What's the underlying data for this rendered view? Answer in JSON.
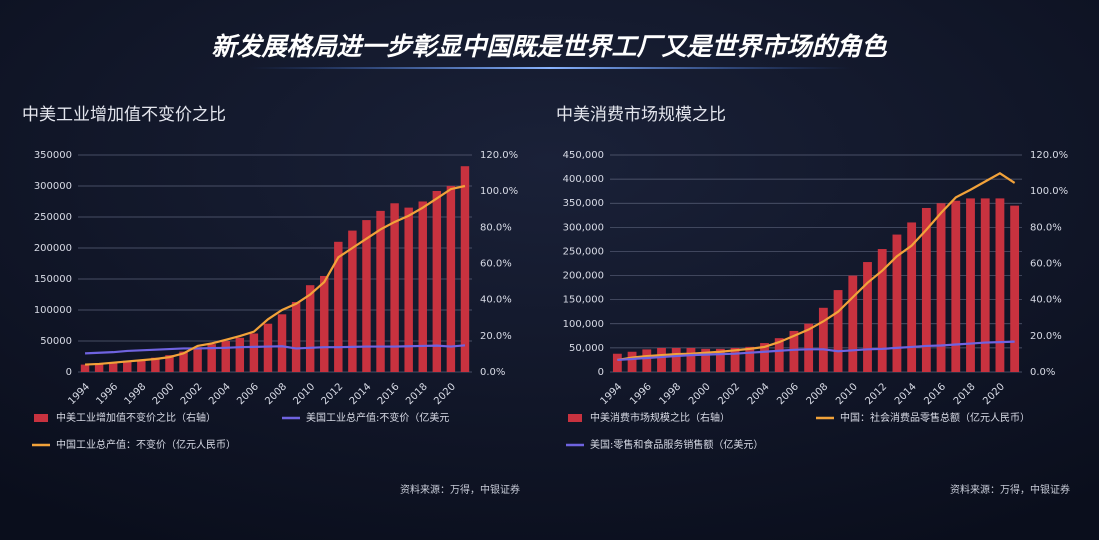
{
  "title": "新发展格局进一步彰显中国既是世界工厂又是世界市场的角色",
  "chart_data": [
    {
      "type": "combo",
      "title": "中美工业增加值不变价之比",
      "source": "资料来源：万得，中银证券",
      "categories": [
        "1994",
        null,
        "1996",
        null,
        "1998",
        null,
        "2000",
        null,
        "2002",
        null,
        "2004",
        null,
        "2006",
        null,
        "2008",
        null,
        "2010",
        null,
        "2012",
        null,
        "2014",
        null,
        "2016",
        null,
        "2018",
        null,
        "2020",
        null
      ],
      "series": [
        {
          "name": "中美工业增加值不变价之比（右轴）",
          "type": "bar",
          "axis": "y2",
          "color": "#c8323f",
          "values": [
            4.1,
            4.8,
            5.5,
            6.2,
            6.9,
            7.9,
            9.3,
            11.3,
            13.7,
            15.4,
            17.1,
            18.9,
            21.3,
            26.7,
            31.9,
            38.7,
            48.0,
            53.1,
            72.0,
            78.2,
            84.0,
            89.1,
            93.3,
            90.9,
            94.3,
            100.1,
            102.9,
            113.8
          ]
        },
        {
          "name": "美国工业总产值:不变价（亿美元",
          "type": "line",
          "color": "#6f63e0",
          "values": [
            30000,
            31000,
            32000,
            34000,
            35000,
            36000,
            37000,
            38000,
            38000,
            38500,
            39000,
            40000,
            40500,
            41000,
            41500,
            38000,
            39000,
            40000,
            40000,
            40500,
            41000,
            41000,
            41000,
            41500,
            42000,
            42500,
            41000,
            43000
          ]
        },
        {
          "name": "中国工业总产值：不变价（亿元人民币）",
          "type": "line",
          "color": "#f2a23a",
          "values": [
            12000,
            13000,
            15000,
            17000,
            19000,
            21000,
            24000,
            30000,
            42000,
            46000,
            52000,
            58000,
            65000,
            85000,
            100000,
            110000,
            125000,
            145000,
            185000,
            200000,
            215000,
            230000,
            242000,
            252000,
            265000,
            280000,
            295000,
            300000
          ]
        }
      ],
      "ylim": [
        0,
        350000
      ],
      "yticks": [
        0,
        50000,
        100000,
        150000,
        200000,
        250000,
        300000,
        350000
      ],
      "y2lim": [
        0,
        120
      ],
      "y2ticks": [
        {
          "value": 0,
          "label": "0.0%"
        },
        {
          "value": 20,
          "label": "20.0%"
        },
        {
          "value": 40,
          "label": "40.0%"
        },
        {
          "value": 60,
          "label": "60.0%"
        },
        {
          "value": 80,
          "label": "80.0%"
        },
        {
          "value": 100,
          "label": "100.0%"
        },
        {
          "value": 120,
          "label": "120.0%"
        }
      ],
      "grid": true
    },
    {
      "type": "combo",
      "title": "中美消费市场规模之比",
      "source": "资料来源：万得，中银证券",
      "categories": [
        "1994",
        null,
        "1996",
        null,
        "1998",
        null,
        "2000",
        null,
        "2002",
        null,
        "2004",
        null,
        "2006",
        null,
        "2008",
        null,
        "2010",
        null,
        "2012",
        null,
        "2014",
        null,
        "2016",
        null,
        "2018",
        null,
        "2020",
        null
      ],
      "series": [
        {
          "name": "中美消费市场规模之比（右轴）",
          "type": "bar",
          "axis": "y2",
          "color": "#c8323f",
          "values": [
            10.1,
            11.2,
            12.5,
            13.3,
            13.3,
            13.3,
            12.8,
            12.8,
            13.3,
            13.9,
            16.0,
            18.7,
            22.7,
            26.7,
            35.5,
            45.3,
            53.3,
            60.8,
            68.0,
            76.0,
            82.7,
            90.7,
            93.3,
            94.7,
            96.0,
            96.0,
            96.0,
            92.0
          ]
        },
        {
          "name": "中国：社会消费品零售总额（亿元人民币）",
          "type": "line",
          "color": "#f2a23a",
          "values": [
            25000,
            30000,
            33000,
            35000,
            37000,
            38000,
            40000,
            42000,
            45000,
            48000,
            52000,
            62000,
            75000,
            88000,
            105000,
            125000,
            155000,
            185000,
            210000,
            240000,
            262000,
            295000,
            330000,
            362000,
            378000,
            395000,
            412000,
            392000
          ]
        },
        {
          "name": "美国:零售和食品服务销售额（亿美元）",
          "type": "line",
          "color": "#6f63e0",
          "values": [
            25000,
            27000,
            29000,
            31000,
            33000,
            35000,
            36000,
            37000,
            38000,
            40000,
            42000,
            44000,
            46000,
            47000,
            47000,
            43000,
            45000,
            47000,
            48000,
            50000,
            52000,
            54000,
            55000,
            57000,
            59000,
            61000,
            62000,
            63000
          ]
        }
      ],
      "ylim": [
        0,
        450000
      ],
      "yticks": [
        0,
        {
          "value": 50000,
          "label": "50,000"
        },
        {
          "value": 100000,
          "label": "100,000"
        },
        {
          "value": 150000,
          "label": "150,000"
        },
        {
          "value": 200000,
          "label": "200,000"
        },
        {
          "value": 250000,
          "label": "250,000"
        },
        {
          "value": 300000,
          "label": "300,000"
        },
        {
          "value": 350000,
          "label": "350,000"
        },
        {
          "value": 400000,
          "label": "400,000"
        },
        {
          "value": 450000,
          "label": "450,000"
        }
      ],
      "y2lim": [
        0,
        120
      ],
      "y2ticks": [
        {
          "value": 0,
          "label": "0.0%"
        },
        {
          "value": 20,
          "label": "20.0%"
        },
        {
          "value": 40,
          "label": "40.0%"
        },
        {
          "value": 60,
          "label": "60.0%"
        },
        {
          "value": 80,
          "label": "80.0%"
        },
        {
          "value": 100,
          "label": "100.0%"
        },
        {
          "value": 120,
          "label": "120.0%"
        }
      ],
      "grid": true
    }
  ]
}
